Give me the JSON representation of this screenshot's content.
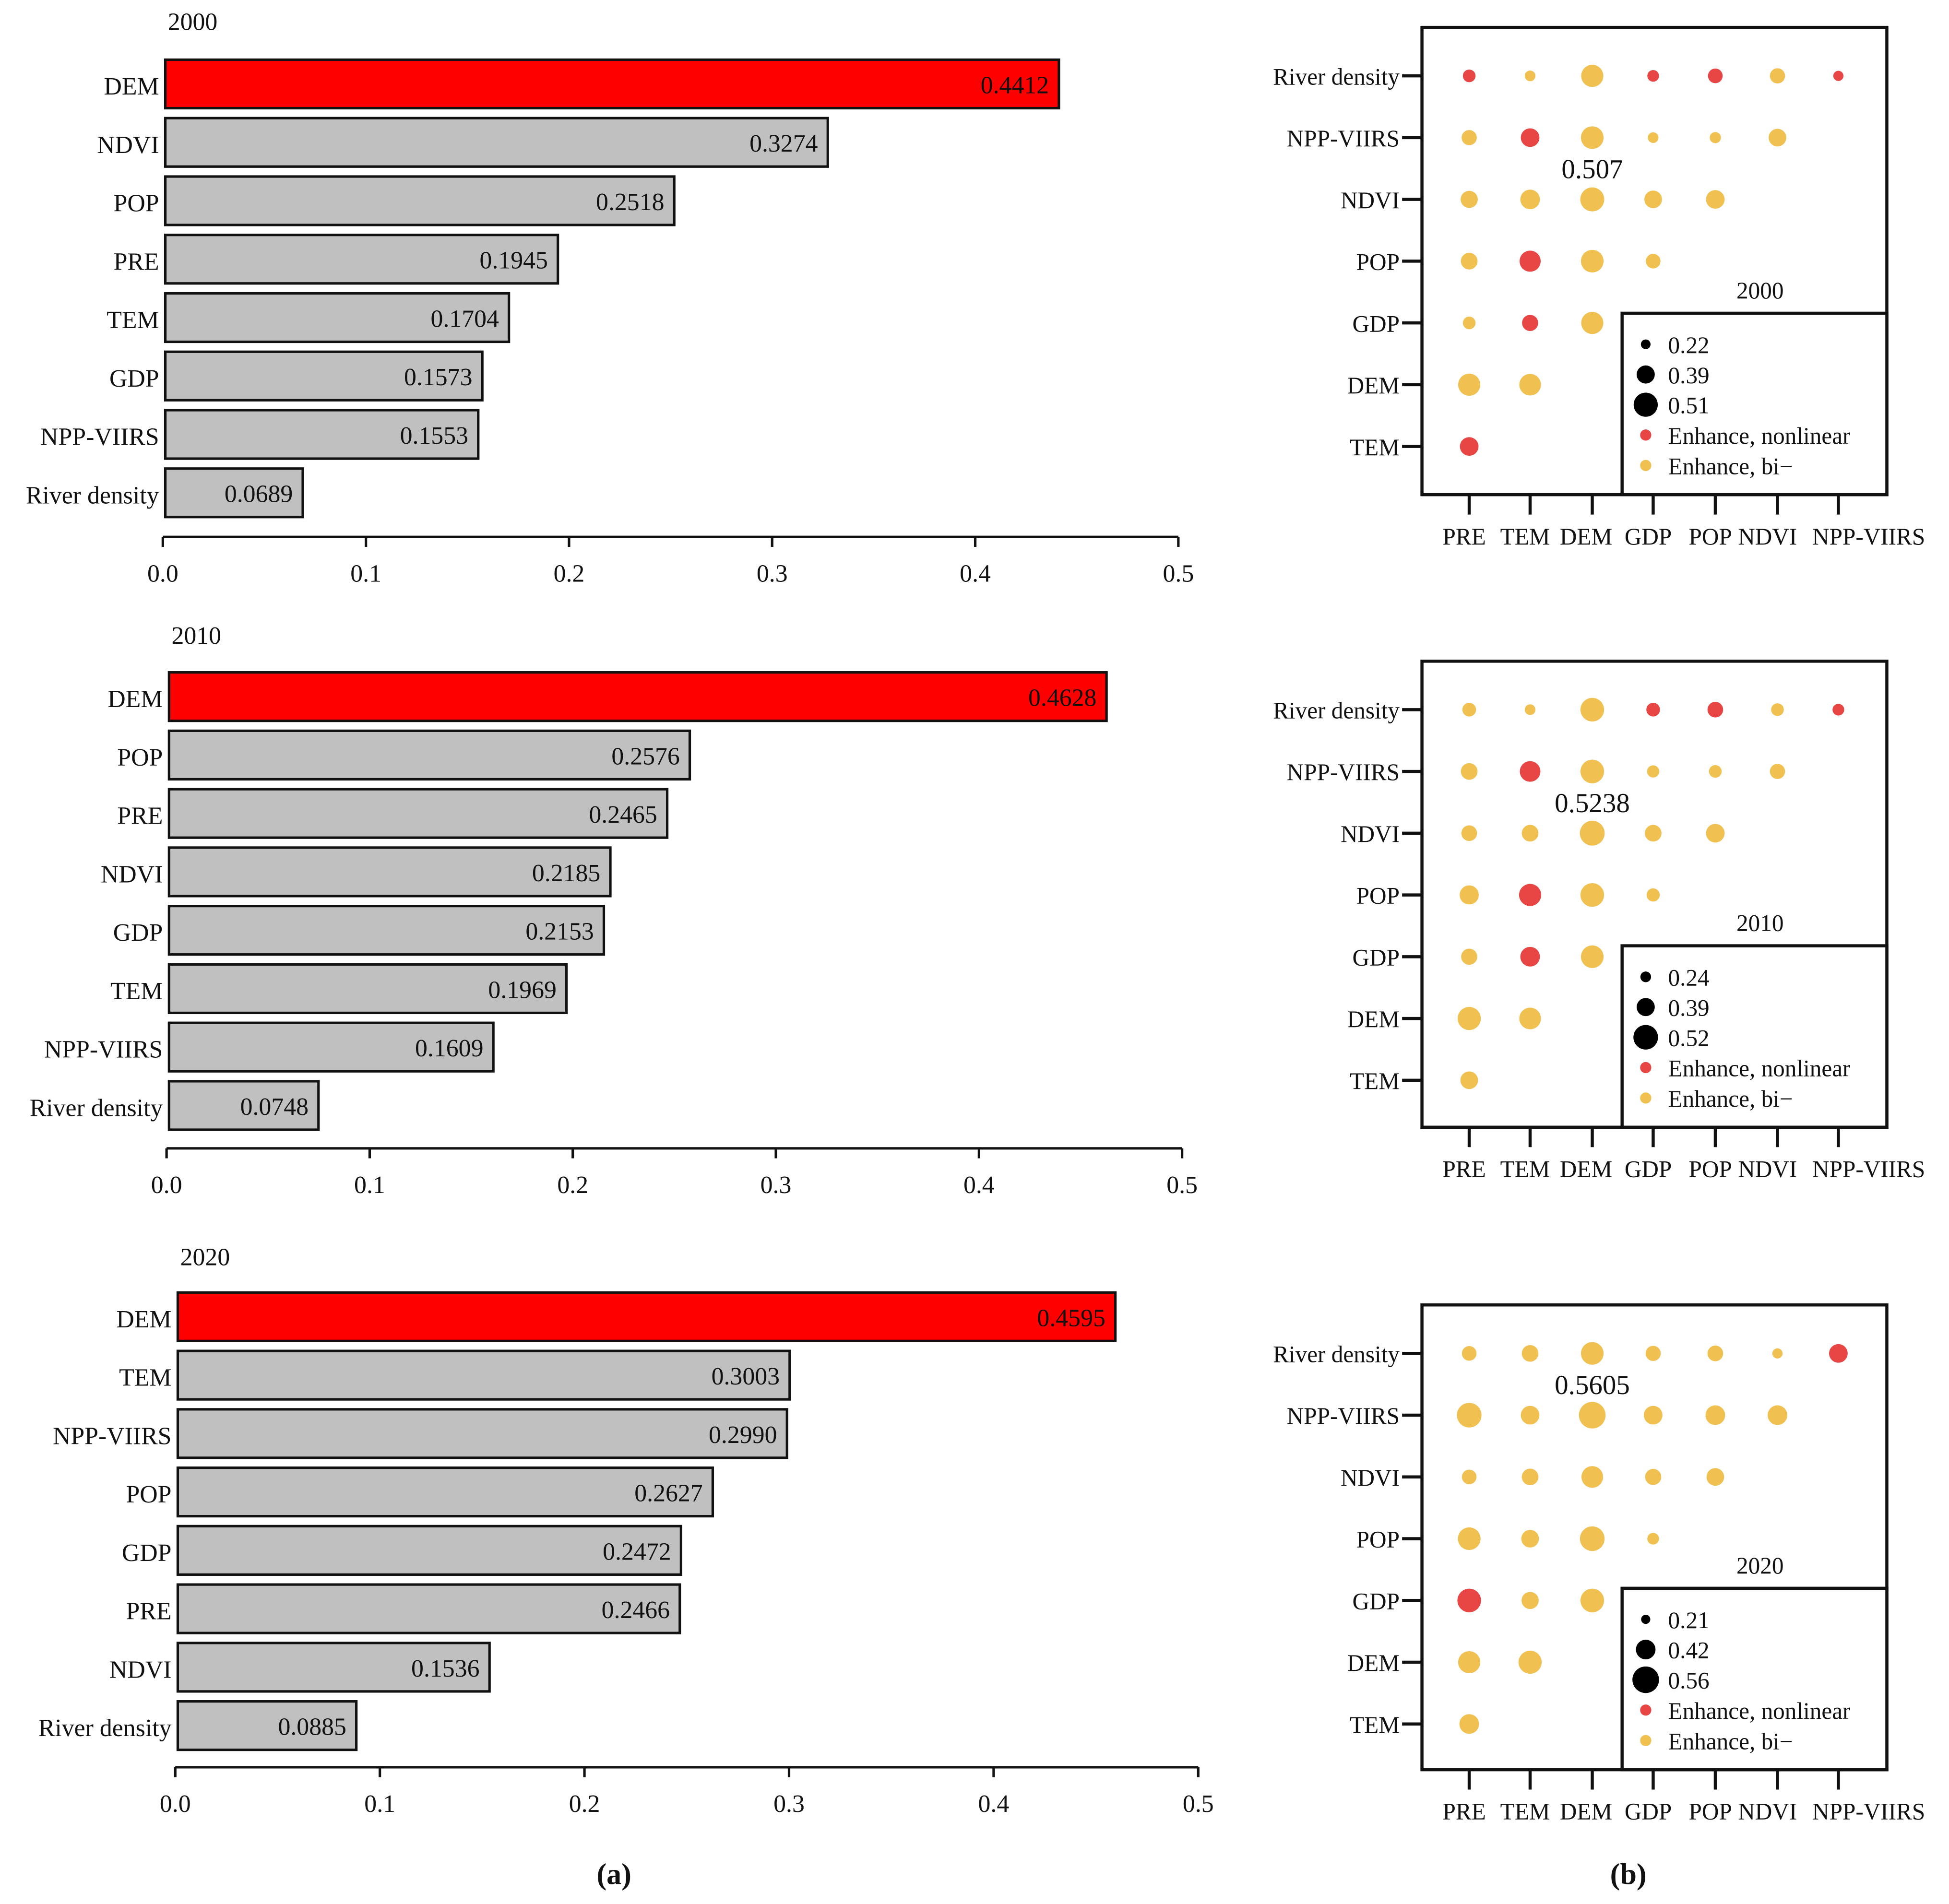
{
  "colors": {
    "highlight_bar": "#ff0000",
    "bar": "#c0c0c0",
    "nonlinear": "#e84545",
    "bivariate": "#f0c050"
  },
  "chart_data": [
    {
      "type": "bar",
      "orientation": "horizontal",
      "title": "2000",
      "xlim": [
        0,
        0.5
      ],
      "xticks": [
        "0.0",
        "0.1",
        "0.2",
        "0.3",
        "0.4",
        "0.5"
      ],
      "categories": [
        "DEM",
        "NDVI",
        "POP",
        "PRE",
        "TEM",
        "GDP",
        "NPP-VIIRS",
        "River density"
      ],
      "values": [
        0.4412,
        0.3274,
        0.2518,
        0.1945,
        0.1704,
        0.1573,
        0.1553,
        0.0689
      ],
      "labels": [
        "0.4412",
        "0.3274",
        "0.2518",
        "0.1945",
        "0.1704",
        "0.1573",
        "0.1553",
        "0.0689"
      ]
    },
    {
      "type": "bar",
      "orientation": "horizontal",
      "title": "2010",
      "xlim": [
        0,
        0.5
      ],
      "xticks": [
        "0.0",
        "0.1",
        "0.2",
        "0.3",
        "0.4",
        "0.5"
      ],
      "categories": [
        "DEM",
        "POP",
        "PRE",
        "NDVI",
        "GDP",
        "TEM",
        "NPP-VIIRS",
        "River density"
      ],
      "values": [
        0.4628,
        0.2576,
        0.2465,
        0.2185,
        0.2153,
        0.1969,
        0.1609,
        0.0748
      ],
      "labels": [
        "0.4628",
        "0.2576",
        "0.2465",
        "0.2185",
        "0.2153",
        "0.1969",
        "0.1609",
        "0.0748"
      ]
    },
    {
      "type": "bar",
      "orientation": "horizontal",
      "title": "2020",
      "xlim": [
        0,
        0.5
      ],
      "xticks": [
        "0.0",
        "0.1",
        "0.2",
        "0.3",
        "0.4",
        "0.5"
      ],
      "categories": [
        "DEM",
        "TEM",
        "NPP-VIIRS",
        "POP",
        "GDP",
        "PRE",
        "NDVI",
        "River density"
      ],
      "values": [
        0.4595,
        0.3003,
        0.299,
        0.2627,
        0.2472,
        0.2466,
        0.1536,
        0.0885
      ],
      "labels": [
        "0.4595",
        "0.3003",
        "0.2990",
        "0.2627",
        "0.2472",
        "0.2466",
        "0.1536",
        "0.0885"
      ]
    },
    {
      "type": "scatter",
      "subtype": "bubble-matrix",
      "title": "2000",
      "x_categories": [
        "PRE",
        "TEM",
        "DEM",
        "GDP",
        "POP",
        "NDVI",
        "NPP-VIIRS"
      ],
      "y_categories": [
        "River density",
        "NPP-VIIRS",
        "NDVI",
        "POP",
        "GDP",
        "DEM",
        "TEM"
      ],
      "values": [
        [
          0.28,
          0.24,
          0.47,
          0.26,
          0.32,
          0.33,
          0.23
        ],
        [
          0.33,
          0.4,
          0.48,
          0.24,
          0.25,
          0.38
        ],
        [
          0.37,
          0.42,
          0.507,
          0.38,
          0.4
        ],
        [
          0.36,
          0.45,
          0.48,
          0.32
        ],
        [
          0.28,
          0.35,
          0.47
        ],
        [
          0.47,
          0.46
        ],
        [
          0.4
        ]
      ],
      "types": [
        [
          "n",
          "b",
          "b",
          "n",
          "n",
          "b",
          "n"
        ],
        [
          "b",
          "n",
          "b",
          "b",
          "b",
          "b"
        ],
        [
          "b",
          "b",
          "b",
          "b",
          "b"
        ],
        [
          "b",
          "n",
          "b",
          "b"
        ],
        [
          "b",
          "n",
          "b"
        ],
        [
          "b",
          "b"
        ],
        [
          "n"
        ]
      ],
      "annotation": {
        "text": "0.507",
        "row": 2,
        "col": 2
      },
      "legend": {
        "sizes": [
          "0.22",
          "0.39",
          "0.51"
        ],
        "size_values": [
          0.22,
          0.39,
          0.51
        ],
        "nonlinear": "Enhance, nonlinear",
        "bivariate": "Enhance, bi−",
        "placement": "bottom-right"
      }
    },
    {
      "type": "scatter",
      "subtype": "bubble-matrix",
      "title": "2010",
      "x_categories": [
        "PRE",
        "TEM",
        "DEM",
        "GDP",
        "POP",
        "NDVI",
        "NPP-VIIRS"
      ],
      "y_categories": [
        "River density",
        "NPP-VIIRS",
        "NDVI",
        "POP",
        "GDP",
        "DEM",
        "TEM"
      ],
      "values": [
        [
          0.3,
          0.24,
          0.5,
          0.3,
          0.34,
          0.28,
          0.26
        ],
        [
          0.36,
          0.44,
          0.5,
          0.27,
          0.28,
          0.33
        ],
        [
          0.34,
          0.36,
          0.5238,
          0.36,
          0.4
        ],
        [
          0.41,
          0.47,
          0.5,
          0.29
        ],
        [
          0.35,
          0.42,
          0.48
        ],
        [
          0.49,
          0.46
        ],
        [
          0.38
        ]
      ],
      "types": [
        [
          "b",
          "b",
          "b",
          "n",
          "n",
          "b",
          "n"
        ],
        [
          "b",
          "n",
          "b",
          "b",
          "b",
          "b"
        ],
        [
          "b",
          "b",
          "b",
          "b",
          "b"
        ],
        [
          "b",
          "n",
          "b",
          "b"
        ],
        [
          "b",
          "n",
          "b"
        ],
        [
          "b",
          "b"
        ],
        [
          "b"
        ]
      ],
      "annotation": {
        "text": "0.5238",
        "row": 2,
        "col": 2
      },
      "legend": {
        "sizes": [
          "0.24",
          "0.39",
          "0.52"
        ],
        "size_values": [
          0.24,
          0.39,
          0.52
        ],
        "nonlinear": "Enhance, nonlinear",
        "bivariate": "Enhance, bi−",
        "placement": "bottom-right"
      }
    },
    {
      "type": "scatter",
      "subtype": "bubble-matrix",
      "title": "2020",
      "x_categories": [
        "PRE",
        "TEM",
        "DEM",
        "GDP",
        "POP",
        "NDVI",
        "NPP-VIIRS"
      ],
      "y_categories": [
        "River density",
        "NPP-VIIRS",
        "NDVI",
        "POP",
        "GDP",
        "DEM",
        "TEM"
      ],
      "values": [
        [
          0.32,
          0.36,
          0.48,
          0.33,
          0.34,
          0.23,
          0.4
        ],
        [
          0.52,
          0.4,
          0.5605,
          0.4,
          0.42,
          0.42
        ],
        [
          0.32,
          0.36,
          0.46,
          0.35,
          0.38
        ],
        [
          0.48,
          0.38,
          0.52,
          0.26
        ],
        [
          0.5,
          0.37,
          0.5
        ],
        [
          0.47,
          0.49
        ],
        [
          0.42
        ]
      ],
      "types": [
        [
          "b",
          "b",
          "b",
          "b",
          "b",
          "b",
          "n"
        ],
        [
          "b",
          "b",
          "b",
          "b",
          "b",
          "b"
        ],
        [
          "b",
          "b",
          "b",
          "b",
          "b"
        ],
        [
          "b",
          "b",
          "b",
          "b"
        ],
        [
          "n",
          "b",
          "b"
        ],
        [
          "b",
          "b"
        ],
        [
          "b"
        ]
      ],
      "annotation": {
        "text": "0.5605",
        "row": 1,
        "col": 2
      },
      "legend": {
        "sizes": [
          "0.21",
          "0.42",
          "0.56"
        ],
        "size_values": [
          0.21,
          0.42,
          0.56
        ],
        "nonlinear": "Enhance, nonlinear",
        "bivariate": "Enhance, bi−",
        "placement": "bottom-right"
      }
    }
  ],
  "panel_labels": {
    "a": "(a)",
    "b": "(b)"
  }
}
